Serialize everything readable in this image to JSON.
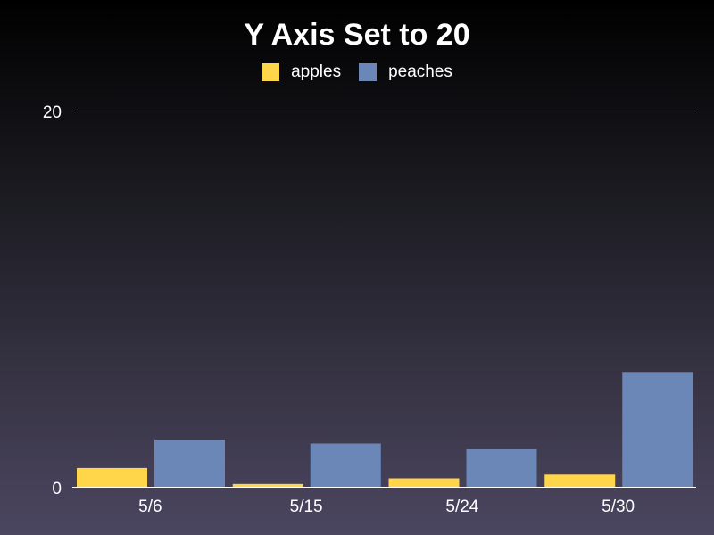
{
  "chart_data": {
    "type": "bar",
    "title": "Y Axis Set to 20",
    "xlabel": "",
    "ylabel": "",
    "categories": [
      "5/6",
      "5/15",
      "5/24",
      "5/30"
    ],
    "series": [
      {
        "name": "apples",
        "color": "#ffd54a",
        "values": [
          1,
          0.15,
          0.45,
          0.65
        ]
      },
      {
        "name": "peaches",
        "color": "#6a87b8",
        "values": [
          2.5,
          2.3,
          2.0,
          6.1
        ]
      }
    ],
    "ylim": [
      0,
      20
    ],
    "yticks": [
      "0",
      "20"
    ],
    "grid": false,
    "legend_position": "top-center"
  }
}
